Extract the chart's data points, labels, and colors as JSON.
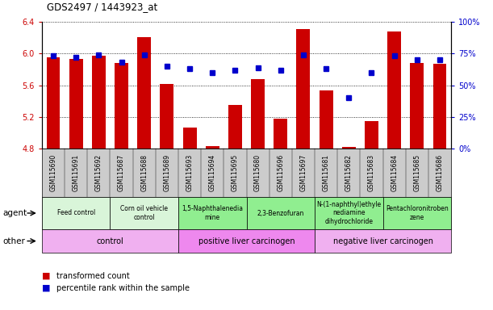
{
  "title": "GDS2497 / 1443923_at",
  "samples": [
    "GSM115690",
    "GSM115691",
    "GSM115692",
    "GSM115687",
    "GSM115688",
    "GSM115689",
    "GSM115693",
    "GSM115694",
    "GSM115695",
    "GSM115680",
    "GSM115696",
    "GSM115697",
    "GSM115681",
    "GSM115682",
    "GSM115683",
    "GSM115684",
    "GSM115685",
    "GSM115686"
  ],
  "transformed_count": [
    5.95,
    5.93,
    5.97,
    5.88,
    6.21,
    5.62,
    5.07,
    4.83,
    5.35,
    5.68,
    5.18,
    6.31,
    5.54,
    4.82,
    5.15,
    6.28,
    5.88,
    5.87
  ],
  "percentile_rank": [
    73,
    72,
    74,
    68,
    74,
    65,
    63,
    60,
    62,
    64,
    62,
    74,
    63,
    40,
    60,
    73,
    70,
    70
  ],
  "ymin": 4.8,
  "ymax": 6.4,
  "yticks": [
    4.8,
    5.2,
    5.6,
    6.0,
    6.4
  ],
  "y2ticks": [
    0,
    25,
    50,
    75,
    100
  ],
  "agent_groups": [
    {
      "label": "Feed control",
      "start": 0,
      "end": 3,
      "color": "#d9f5d9"
    },
    {
      "label": "Corn oil vehicle\ncontrol",
      "start": 3,
      "end": 6,
      "color": "#d9f5d9"
    },
    {
      "label": "1,5-Naphthalenedia\nmine",
      "start": 6,
      "end": 9,
      "color": "#90ee90"
    },
    {
      "label": "2,3-Benzofuran",
      "start": 9,
      "end": 12,
      "color": "#90ee90"
    },
    {
      "label": "N-(1-naphthyl)ethyle\nnediamine\ndihydrochloride",
      "start": 12,
      "end": 15,
      "color": "#90ee90"
    },
    {
      "label": "Pentachloronitroben\nzene",
      "start": 15,
      "end": 18,
      "color": "#90ee90"
    }
  ],
  "other_groups": [
    {
      "label": "control",
      "start": 0,
      "end": 6,
      "color": "#f0b0f0"
    },
    {
      "label": "positive liver carcinogen",
      "start": 6,
      "end": 12,
      "color": "#ee88ee"
    },
    {
      "label": "negative liver carcinogen",
      "start": 12,
      "end": 18,
      "color": "#f0b0f0"
    }
  ],
  "bar_color": "#cc0000",
  "dot_color": "#0000cc",
  "ylabel_left_color": "#cc0000",
  "ylabel_right_color": "#0000cc",
  "xtick_bg": "#d0d0d0",
  "plot_bg": "#ffffff"
}
